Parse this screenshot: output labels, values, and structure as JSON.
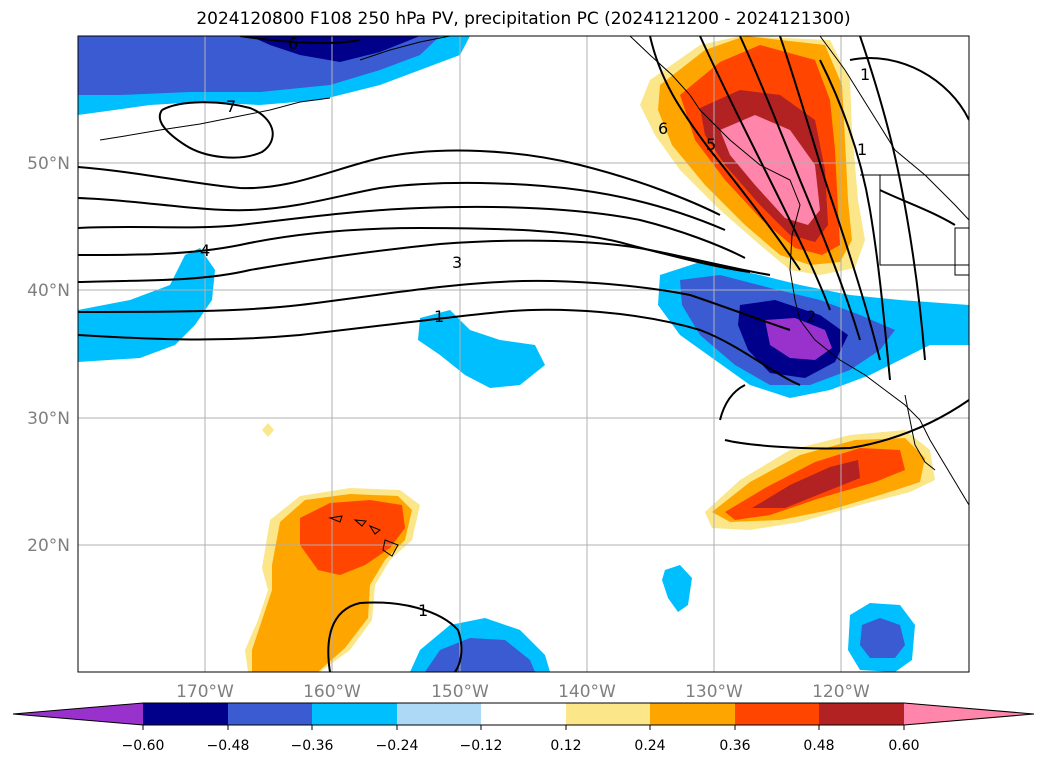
{
  "title": "2024120800 F108 250 hPa PV, precipitation PC (2024121200 - 2024121300)",
  "colors": {
    "neg_060": "#9932cc",
    "neg_048": "#00008b",
    "neg_036": "#3a5bd1",
    "neg_024": "#00bfff",
    "neg_012": "#add8f6",
    "zero": "#ffffff",
    "pos_012": "#fce68a",
    "pos_024": "#ffa500",
    "pos_036": "#ff4500",
    "pos_048": "#b22222",
    "pos_060": "#ff85aa"
  },
  "axes": {
    "lat_labels": [
      "50°N",
      "40°N",
      "30°N",
      "20°N"
    ],
    "lon_labels": [
      "170°W",
      "160°W",
      "150°W",
      "140°W",
      "130°W",
      "120°W"
    ]
  },
  "contour_labels": [
    "6",
    "7",
    "1",
    "4",
    "3",
    "1",
    "6",
    "5",
    "1",
    "1",
    "2"
  ],
  "colorbar": {
    "ticks": [
      "−0.60",
      "−0.48",
      "−0.36",
      "−0.24",
      "−0.12",
      "0.12",
      "0.24",
      "0.36",
      "0.48",
      "0.60"
    ]
  }
}
